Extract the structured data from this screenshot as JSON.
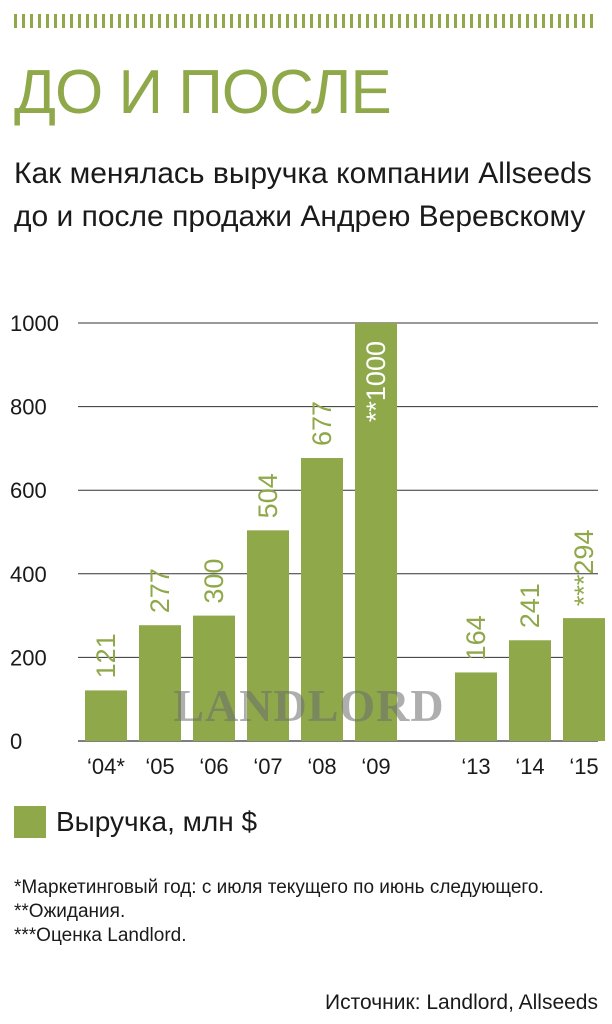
{
  "kicker": "ДО И ПОСЛЕ",
  "heading": "Как менялась выручка компании Allseeds до и после продажи Андрею Веревскому",
  "legend_label": "Выручка, млн $",
  "watermark": "LANDLORD",
  "notes": [
    "*Маркетинговый год: с июля текущего по июнь следующего.",
    "**Ожидания.",
    "***Оценка Landlord."
  ],
  "source": "Источник: Landlord, Allseeds",
  "colors": {
    "accent": "#8fa84a",
    "grid": "#333333",
    "label_on_bar": "#ffffff"
  },
  "chart_data": {
    "type": "bar",
    "categories": [
      "‘04*",
      "‘05",
      "‘06",
      "‘07",
      "‘08",
      "‘09",
      "‘13",
      "‘14",
      "‘15"
    ],
    "values": [
      121,
      277,
      300,
      504,
      677,
      1000,
      164,
      241,
      294
    ],
    "value_labels": [
      "121",
      "277",
      "300",
      "504",
      "677",
      "**1000",
      "164",
      "241",
      "***294"
    ],
    "y_ticks": [
      0,
      200,
      400,
      600,
      800,
      1000
    ],
    "ylim": [
      0,
      1000
    ],
    "gap_after_category_index": 5,
    "grid": true,
    "legend_position": "bottom-left",
    "series_name": "Выручка, млн $"
  }
}
